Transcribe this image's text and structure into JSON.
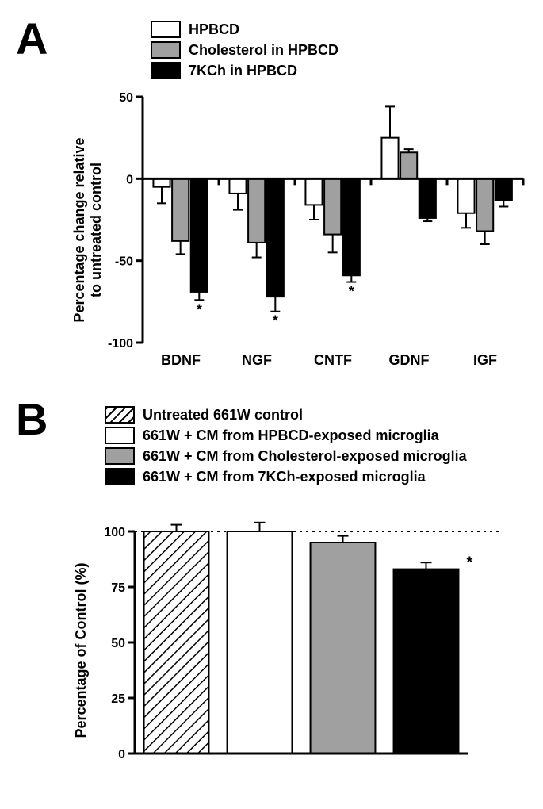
{
  "panelA": {
    "label": "A",
    "legend": [
      {
        "label": "HPBCD",
        "fill": "#ffffff"
      },
      {
        "label": "Cholesterol in HPBCD",
        "fill": "#a0a0a0"
      },
      {
        "label": "7KCh in HPBCD",
        "fill": "#000000"
      }
    ],
    "chart": {
      "type": "bar",
      "ylabel_line1": "Percentage change relative",
      "ylabel_line2": "to untreated control",
      "ylim": [
        -100,
        50
      ],
      "yticks": [
        -100,
        -50,
        0,
        50
      ],
      "categories": [
        "BDNF",
        "NGF",
        "CNTF",
        "GDNF",
        "IGF"
      ],
      "series": [
        {
          "name": "HPBCD",
          "fill": "#ffffff",
          "values": [
            -5,
            -9,
            -16,
            25,
            -21
          ],
          "err": [
            10,
            10,
            9,
            19,
            9
          ],
          "sig": [
            false,
            false,
            false,
            false,
            false
          ]
        },
        {
          "name": "Cholesterol",
          "fill": "#a0a0a0",
          "values": [
            -38,
            -39,
            -34,
            16,
            -32
          ],
          "err": [
            8,
            9,
            11,
            2,
            8
          ],
          "sig": [
            false,
            false,
            false,
            false,
            false
          ]
        },
        {
          "name": "7KCh",
          "fill": "#000000",
          "values": [
            -69,
            -72,
            -59,
            -24,
            -13
          ],
          "err": [
            5,
            9,
            4,
            2,
            4
          ],
          "sig": [
            true,
            true,
            true,
            false,
            false
          ]
        }
      ],
      "axis_linewidth": 3,
      "bar_stroke": "#000000",
      "bar_stroke_width": 2,
      "label_fontsize": 18,
      "tick_fontsize": 16
    }
  },
  "panelB": {
    "label": "B",
    "legend": [
      {
        "label": "Untreated 661W control",
        "fill": "hatch"
      },
      {
        "label": "661W + CM from HPBCD-exposed microglia",
        "fill": "#ffffff"
      },
      {
        "label": "661W + CM from Cholesterol-exposed microglia",
        "fill": "#a0a0a0"
      },
      {
        "label": "661W + CM from 7KCh-exposed microglia",
        "fill": "#000000"
      }
    ],
    "chart": {
      "type": "bar",
      "ylabel": "Percentage of Control (%)",
      "ylim": [
        0,
        100
      ],
      "yticks": [
        0,
        25,
        50,
        75,
        100
      ],
      "ref_line": 100,
      "bars": [
        {
          "fill": "hatch",
          "value": 100,
          "err": 3,
          "sig": false
        },
        {
          "fill": "#ffffff",
          "value": 101,
          "err": 3,
          "sig": false
        },
        {
          "fill": "#a0a0a0",
          "value": 95,
          "err": 3,
          "sig": false
        },
        {
          "fill": "#000000",
          "value": 83,
          "err": 3,
          "sig": true
        }
      ],
      "axis_linewidth": 3,
      "bar_stroke": "#000000",
      "bar_stroke_width": 2,
      "label_fontsize": 18,
      "tick_fontsize": 16
    }
  }
}
